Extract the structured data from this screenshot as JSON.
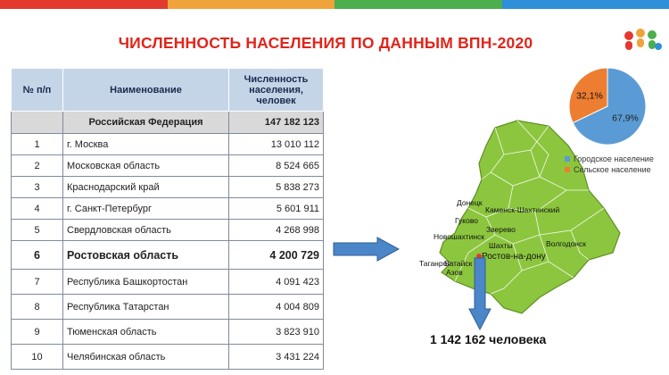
{
  "title": "ЧИСЛЕННОСТЬ НАСЕЛЕНИЯ ПО ДАННЫМ ВПН-2020",
  "colors": {
    "bar1": "#e23a2e",
    "bar2": "#f0a33a",
    "bar3": "#4cae4c",
    "bar4": "#2f8fd8",
    "title": "#e0251b",
    "header_bg": "#c5d5e8",
    "map_green": "#8cc63f",
    "arrow": "#4a86c8",
    "pie_urban": "#5b9bd5",
    "pie_rural": "#ed7d31"
  },
  "table": {
    "headers": [
      "№ п/п",
      "Наименование",
      "Численность населения, человек"
    ],
    "total": {
      "name": "Российская Федерация",
      "value": "147 182 123"
    },
    "rows": [
      {
        "num": "1",
        "name": "г. Москва",
        "value": "13 010 112"
      },
      {
        "num": "2",
        "name": "Московская область",
        "value": "8 524 665"
      },
      {
        "num": "3",
        "name": "Краснодарский край",
        "value": "5 838 273"
      },
      {
        "num": "4",
        "name": "г. Санкт-Петербург",
        "value": "5 601 911"
      },
      {
        "num": "5",
        "name": "Свердловская область",
        "value": "4 268 998"
      },
      {
        "num": "6",
        "name": "Ростовская область",
        "value": "4 200 729"
      },
      {
        "num": "7",
        "name": "Республика Башкортостан",
        "value": "4 091 423"
      },
      {
        "num": "8",
        "name": "Республика Татарстан",
        "value": "4 004 809"
      },
      {
        "num": "9",
        "name": "Тюменская область",
        "value": "3 823 910"
      },
      {
        "num": "10",
        "name": "Челябинская область",
        "value": "3 431 224"
      }
    ]
  },
  "map_labels": [
    "Донецк",
    "Каменск-Шахтинский",
    "Гуково",
    "Зверево",
    "Новошахтинск",
    "Шахты",
    "Волгодонск",
    "Ростов-на-дону",
    "Таганрог",
    "Батайск",
    "Азов"
  ],
  "rostov_total": "1 142 162 человека",
  "chart_data": {
    "type": "pie",
    "slices": [
      {
        "label": "Городское население",
        "value": 67.9,
        "text": "67,9%"
      },
      {
        "label": "Сельское население",
        "value": 32.1,
        "text": "32,1%"
      }
    ],
    "legend_position": "bottom"
  }
}
